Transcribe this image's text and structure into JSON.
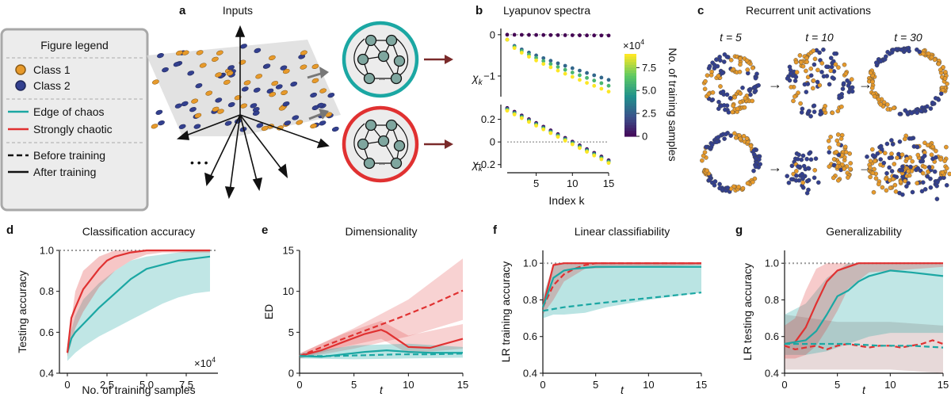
{
  "colors": {
    "teal": "#1ba7a3",
    "red": "#e03131",
    "orange": "#e79a2b",
    "blue": "#33408f",
    "grey": "#999999"
  },
  "panel_letters": {
    "a": "a",
    "b": "b",
    "c": "c",
    "d": "d",
    "e": "e",
    "f": "f",
    "g": "g"
  },
  "legend": {
    "title": "Figure legend",
    "class1": "Class 1",
    "class2": "Class 2",
    "edge": "Edge of chaos",
    "chaotic": "Strongly chaotic",
    "before": "Before training",
    "after": "After training"
  },
  "panel_a": {
    "title": "Inputs",
    "ellipsis": "• • •",
    "net_ellipsis": "..."
  },
  "chart_data": [
    {
      "id": "b",
      "type": "scatter",
      "title": "Lyapunov spectra",
      "ylabel_top": "χ",
      "ylabel_sub": "k",
      "xlabel": "Index k",
      "xticks": [
        "5",
        "10",
        "15"
      ],
      "top": {
        "ylim": [
          -1.5,
          0.15
        ],
        "yticks": [
          "0",
          "−1"
        ]
      },
      "bottom": {
        "ylim": [
          -0.23,
          0.33
        ],
        "yticks": [
          "0.2",
          "0",
          "−0.2"
        ]
      },
      "colorbar": {
        "label": "No. of training samples",
        "ticks": [
          "7.5",
          "5.0",
          "2.5",
          "0"
        ],
        "multiplier": "×10",
        "exponent": "4",
        "range": [
          0,
          9
        ]
      },
      "series_samples_e4": [
        0,
        3,
        6,
        9
      ]
    },
    {
      "id": "c",
      "type": "scatter",
      "title": "Recurrent unit activations",
      "time_labels": [
        "t = 5",
        "t = 10",
        "t = 30"
      ],
      "arrow": "→"
    },
    {
      "id": "d",
      "type": "line",
      "title": "Classification accuracy",
      "xlabel": "No. of training samples",
      "ylabel": "Testing accuracy",
      "xlim": [
        -0.5,
        9.5
      ],
      "ylim": [
        0.4,
        1.0
      ],
      "xticks": [
        "0",
        "2.5",
        "5.0",
        "7.5"
      ],
      "yticks": [
        "0.4",
        "0.6",
        "0.8",
        "1.0"
      ],
      "multiplier": "×10",
      "exponent": "4",
      "series": [
        {
          "name": "Edge of chaos, after training",
          "x": [
            0,
            0.25,
            0.5,
            1,
            1.5,
            2,
            3,
            4,
            5,
            6,
            7,
            8,
            9
          ],
          "y": [
            0.5,
            0.57,
            0.6,
            0.64,
            0.68,
            0.72,
            0.79,
            0.86,
            0.91,
            0.93,
            0.95,
            0.96,
            0.97
          ]
        },
        {
          "name": "Strongly chaotic, after training",
          "x": [
            0,
            0.25,
            0.5,
            1,
            1.5,
            2,
            2.5,
            3,
            3.5,
            4,
            5,
            6,
            7,
            8,
            9
          ],
          "y": [
            0.5,
            0.67,
            0.72,
            0.81,
            0.86,
            0.91,
            0.95,
            0.97,
            0.98,
            0.99,
            1.0,
            1.0,
            1.0,
            1.0,
            1.0
          ]
        }
      ]
    },
    {
      "id": "e",
      "type": "line",
      "title": "Dimensionality",
      "xlabel": "t",
      "ylabel": "ED",
      "xlim": [
        0,
        15
      ],
      "ylim": [
        0,
        15
      ],
      "xticks": [
        "0",
        "5",
        "10",
        "15"
      ],
      "yticks": [
        "0",
        "5",
        "10",
        "15"
      ],
      "series": [
        {
          "name": "Strongly chaotic, after training",
          "x": [
            0,
            2,
            4,
            6,
            7.5,
            8,
            10,
            12,
            15
          ],
          "y": [
            2.1,
            2.8,
            3.8,
            4.8,
            5.3,
            5.0,
            3.2,
            3.1,
            4.2
          ]
        },
        {
          "name": "Strongly chaotic, before training",
          "x": [
            0,
            3,
            6,
            9,
            12,
            15
          ],
          "y": [
            2.1,
            3.7,
            5.2,
            6.7,
            8.3,
            10.1
          ]
        },
        {
          "name": "Edge of chaos, after training",
          "x": [
            0,
            2,
            4,
            6,
            8,
            10,
            12,
            15
          ],
          "y": [
            2.1,
            2.0,
            2.3,
            2.6,
            2.8,
            2.6,
            2.5,
            2.5
          ]
        },
        {
          "name": "Edge of chaos, before training",
          "x": [
            0,
            3,
            6,
            9,
            12,
            15
          ],
          "y": [
            2.1,
            2.1,
            2.2,
            2.3,
            2.3,
            2.4
          ]
        }
      ]
    },
    {
      "id": "f",
      "type": "line",
      "title": "Linear classifiability",
      "xlabel": "t",
      "ylabel": "LR training accuracy",
      "xlim": [
        0,
        15
      ],
      "ylim": [
        0.4,
        1.07
      ],
      "xticks": [
        "0",
        "5",
        "10",
        "15"
      ],
      "yticks": [
        "0.4",
        "0.6",
        "0.8",
        "1.0"
      ],
      "series": [
        {
          "name": "Strongly chaotic, after training",
          "x": [
            0,
            1,
            2,
            3,
            5,
            10,
            15
          ],
          "y": [
            0.76,
            0.99,
            1.0,
            1.0,
            1.0,
            1.0,
            1.0
          ]
        },
        {
          "name": "Strongly chaotic, before training",
          "x": [
            0,
            1,
            2,
            3,
            4,
            5,
            10,
            15
          ],
          "y": [
            0.76,
            0.88,
            0.94,
            0.97,
            0.99,
            1.0,
            1.0,
            1.0
          ]
        },
        {
          "name": "Edge of chaos, after training",
          "x": [
            0,
            1,
            2,
            3,
            4,
            5,
            10,
            15
          ],
          "y": [
            0.76,
            0.92,
            0.96,
            0.97,
            0.975,
            0.98,
            0.98,
            0.98
          ]
        },
        {
          "name": "Edge of chaos, before training",
          "x": [
            0,
            1,
            2,
            5,
            10,
            15
          ],
          "y": [
            0.74,
            0.75,
            0.76,
            0.78,
            0.81,
            0.84
          ]
        }
      ]
    },
    {
      "id": "g",
      "type": "line",
      "title": "Generalizability",
      "xlabel": "t",
      "ylabel": "LR testing accuracy",
      "xlim": [
        0,
        15
      ],
      "ylim": [
        0.4,
        1.07
      ],
      "xticks": [
        "0",
        "5",
        "10",
        "15"
      ],
      "yticks": [
        "0.4",
        "0.6",
        "0.8",
        "1.0"
      ],
      "series": [
        {
          "name": "Strongly chaotic, after training",
          "x": [
            0,
            1,
            2,
            3,
            4,
            5,
            6,
            7,
            8,
            15
          ],
          "y": [
            0.56,
            0.57,
            0.65,
            0.78,
            0.9,
            0.96,
            0.98,
            1.0,
            1.0,
            1.0
          ]
        },
        {
          "name": "Strongly chaotic, before training",
          "x": [
            0,
            1,
            2,
            3,
            4,
            5,
            6,
            7,
            8,
            9,
            10,
            11,
            12,
            13,
            14,
            15
          ],
          "y": [
            0.55,
            0.53,
            0.54,
            0.55,
            0.53,
            0.55,
            0.56,
            0.55,
            0.54,
            0.55,
            0.55,
            0.54,
            0.55,
            0.56,
            0.58,
            0.56
          ]
        },
        {
          "name": "Edge of chaos, after training",
          "x": [
            0,
            1,
            2,
            3,
            4,
            5,
            6,
            7,
            8,
            10,
            12,
            15
          ],
          "y": [
            0.56,
            0.57,
            0.58,
            0.63,
            0.72,
            0.82,
            0.85,
            0.9,
            0.93,
            0.96,
            0.95,
            0.93
          ]
        },
        {
          "name": "Edge of chaos, before training",
          "x": [
            0,
            3,
            6,
            9,
            12,
            15
          ],
          "y": [
            0.56,
            0.56,
            0.56,
            0.55,
            0.55,
            0.54
          ]
        }
      ]
    }
  ]
}
